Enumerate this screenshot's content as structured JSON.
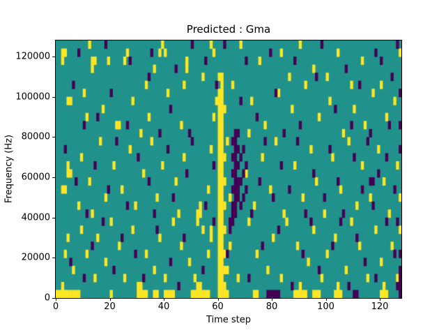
{
  "chart_data": {
    "type": "heatmap",
    "title": "Predicted : Gma",
    "xlabel": "Time step",
    "ylabel": "Frequency (Hz)",
    "x_ticks": [
      0,
      20,
      40,
      60,
      80,
      100,
      120
    ],
    "y_ticks": [
      0,
      20000,
      40000,
      60000,
      80000,
      100000,
      120000
    ],
    "xlim": [
      0,
      128
    ],
    "ylim": [
      0,
      128000
    ],
    "grid_cols": 128,
    "grid_rows": 32,
    "legend": "none",
    "colors": {
      "mid": "#21918c",
      "high": "#fde725",
      "low": "#440154",
      "axis": "#000000",
      "background": "#ffffff"
    },
    "high_cells": [
      [
        0,
        0
      ],
      [
        1,
        0
      ],
      [
        2,
        0
      ],
      [
        3,
        0
      ],
      [
        4,
        0
      ],
      [
        5,
        0
      ],
      [
        6,
        0
      ],
      [
        7,
        0
      ],
      [
        8,
        0
      ],
      [
        20,
        0
      ],
      [
        30,
        0
      ],
      [
        31,
        0
      ],
      [
        32,
        0
      ],
      [
        33,
        0
      ],
      [
        36,
        0
      ],
      [
        37,
        0
      ],
      [
        40,
        0
      ],
      [
        41,
        0
      ],
      [
        42,
        0
      ],
      [
        43,
        0
      ],
      [
        50,
        0
      ],
      [
        51,
        0
      ],
      [
        52,
        0
      ],
      [
        53,
        0
      ],
      [
        54,
        0
      ],
      [
        55,
        0
      ],
      [
        56,
        0
      ],
      [
        60,
        0
      ],
      [
        61,
        0
      ],
      [
        62,
        0
      ],
      [
        63,
        0
      ],
      [
        73,
        0
      ],
      [
        74,
        0
      ],
      [
        88,
        0
      ],
      [
        89,
        0
      ],
      [
        90,
        0
      ],
      [
        91,
        0
      ],
      [
        92,
        0
      ],
      [
        95,
        0
      ],
      [
        96,
        0
      ],
      [
        97,
        0
      ],
      [
        103,
        0
      ],
      [
        104,
        0
      ],
      [
        105,
        0
      ],
      [
        120,
        0
      ],
      [
        121,
        0
      ],
      [
        122,
        0
      ],
      [
        2,
        1
      ],
      [
        3,
        5
      ],
      [
        4,
        7
      ],
      [
        6,
        3
      ],
      [
        9,
        8
      ],
      [
        11,
        5
      ],
      [
        14,
        2
      ],
      [
        15,
        7
      ],
      [
        18,
        4
      ],
      [
        20,
        9
      ],
      [
        23,
        6
      ],
      [
        25,
        2
      ],
      [
        28,
        8
      ],
      [
        30,
        1
      ],
      [
        31,
        1
      ],
      [
        33,
        5
      ],
      [
        36,
        3
      ],
      [
        38,
        7
      ],
      [
        40,
        2
      ],
      [
        43,
        9
      ],
      [
        46,
        6
      ],
      [
        49,
        4
      ],
      [
        51,
        2
      ],
      [
        52,
        1
      ],
      [
        53,
        1
      ],
      [
        54,
        8
      ],
      [
        56,
        5
      ],
      [
        57,
        7
      ],
      [
        57,
        8
      ],
      [
        63,
        3
      ],
      [
        64,
        6
      ],
      [
        67,
        2
      ],
      [
        71,
        9
      ],
      [
        74,
        5
      ],
      [
        78,
        3
      ],
      [
        80,
        7
      ],
      [
        83,
        2
      ],
      [
        85,
        9
      ],
      [
        89,
        6
      ],
      [
        90,
        1
      ],
      [
        93,
        4
      ],
      [
        95,
        8
      ],
      [
        98,
        2
      ],
      [
        100,
        5
      ],
      [
        103,
        7
      ],
      [
        104,
        1
      ],
      [
        107,
        3
      ],
      [
        109,
        9
      ],
      [
        112,
        6
      ],
      [
        115,
        2
      ],
      [
        118,
        8
      ],
      [
        120,
        4
      ],
      [
        121,
        1
      ],
      [
        124,
        6
      ],
      [
        126,
        2
      ],
      [
        127,
        8
      ],
      [
        60,
        1
      ],
      [
        61,
        1
      ],
      [
        62,
        1
      ],
      [
        60,
        2
      ],
      [
        61,
        2
      ],
      [
        60,
        3
      ],
      [
        61,
        3
      ],
      [
        62,
        3
      ],
      [
        60,
        4
      ],
      [
        61,
        4
      ],
      [
        60,
        5
      ],
      [
        61,
        5
      ],
      [
        62,
        5
      ],
      [
        60,
        6
      ],
      [
        61,
        6
      ],
      [
        60,
        7
      ],
      [
        61,
        7
      ],
      [
        60,
        8
      ],
      [
        61,
        8
      ],
      [
        62,
        8
      ],
      [
        60,
        9
      ],
      [
        61,
        9
      ],
      [
        60,
        10
      ],
      [
        61,
        10
      ],
      [
        60,
        11
      ],
      [
        61,
        11
      ],
      [
        62,
        11
      ],
      [
        60,
        12
      ],
      [
        61,
        12
      ],
      [
        60,
        13
      ],
      [
        61,
        13
      ],
      [
        60,
        14
      ],
      [
        61,
        14
      ],
      [
        62,
        14
      ],
      [
        60,
        15
      ],
      [
        61,
        15
      ],
      [
        60,
        16
      ],
      [
        61,
        16
      ],
      [
        60,
        17
      ],
      [
        61,
        17
      ],
      [
        62,
        17
      ],
      [
        60,
        18
      ],
      [
        61,
        18
      ],
      [
        60,
        19
      ],
      [
        61,
        19
      ],
      [
        60,
        20
      ],
      [
        61,
        20
      ],
      [
        60,
        21
      ],
      [
        61,
        21
      ],
      [
        60,
        22
      ],
      [
        61,
        22
      ],
      [
        60,
        23
      ],
      [
        61,
        23
      ],
      [
        62,
        23
      ],
      [
        60,
        24
      ],
      [
        61,
        24
      ],
      [
        60,
        25
      ],
      [
        61,
        25
      ],
      [
        61,
        26
      ],
      [
        60,
        27
      ],
      [
        61,
        27
      ],
      [
        2,
        13
      ],
      [
        3,
        13
      ],
      [
        4,
        15
      ],
      [
        5,
        15
      ],
      [
        4,
        16
      ],
      [
        8,
        11
      ],
      [
        9,
        17
      ],
      [
        12,
        14
      ],
      [
        13,
        10
      ],
      [
        16,
        19
      ],
      [
        18,
        12
      ],
      [
        21,
        16
      ],
      [
        24,
        13
      ],
      [
        27,
        18
      ],
      [
        29,
        11
      ],
      [
        32,
        15
      ],
      [
        35,
        19
      ],
      [
        37,
        12
      ],
      [
        39,
        16
      ],
      [
        44,
        14
      ],
      [
        45,
        10
      ],
      [
        47,
        17
      ],
      [
        52,
        9
      ],
      [
        52,
        10
      ],
      [
        53,
        10
      ],
      [
        53,
        11
      ],
      [
        56,
        13
      ],
      [
        57,
        18
      ],
      [
        63,
        19
      ],
      [
        64,
        12
      ],
      [
        70,
        15
      ],
      [
        73,
        11
      ],
      [
        76,
        17
      ],
      [
        79,
        13
      ],
      [
        81,
        19
      ],
      [
        84,
        10
      ],
      [
        88,
        16
      ],
      [
        91,
        12
      ],
      [
        94,
        18
      ],
      [
        96,
        14
      ],
      [
        99,
        10
      ],
      [
        102,
        17
      ],
      [
        105,
        13
      ],
      [
        108,
        19
      ],
      [
        111,
        11
      ],
      [
        113,
        16
      ],
      [
        116,
        12
      ],
      [
        119,
        18
      ],
      [
        121,
        14
      ],
      [
        123,
        10
      ],
      [
        126,
        16
      ],
      [
        127,
        12
      ],
      [
        4,
        24
      ],
      [
        5,
        24
      ],
      [
        10,
        25
      ],
      [
        11,
        22
      ],
      [
        17,
        23
      ],
      [
        22,
        21
      ],
      [
        23,
        21
      ],
      [
        28,
        24
      ],
      [
        33,
        26
      ],
      [
        34,
        22
      ],
      [
        41,
        25
      ],
      [
        46,
        21
      ],
      [
        47,
        26
      ],
      [
        58,
        22
      ],
      [
        59,
        24
      ],
      [
        65,
        26
      ],
      [
        71,
        20
      ],
      [
        72,
        24
      ],
      [
        77,
        21
      ],
      [
        82,
        25
      ],
      [
        87,
        23
      ],
      [
        92,
        26
      ],
      [
        97,
        22
      ],
      [
        101,
        24
      ],
      [
        106,
        20
      ],
      [
        109,
        26
      ],
      [
        114,
        21
      ],
      [
        117,
        25
      ],
      [
        122,
        22
      ],
      [
        125,
        24
      ],
      [
        31,
        20
      ],
      [
        54,
        27
      ],
      [
        86,
        27
      ],
      [
        100,
        27
      ],
      [
        110,
        23
      ],
      [
        120,
        26
      ],
      [
        2,
        30
      ],
      [
        3,
        30
      ],
      [
        2,
        29
      ],
      [
        13,
        29
      ],
      [
        14,
        29
      ],
      [
        13,
        28
      ],
      [
        19,
        29
      ],
      [
        25,
        29
      ],
      [
        26,
        30
      ],
      [
        38,
        30
      ],
      [
        39,
        31
      ],
      [
        40,
        30
      ],
      [
        48,
        29
      ],
      [
        48,
        28
      ],
      [
        57,
        31
      ],
      [
        58,
        30
      ],
      [
        75,
        29
      ],
      [
        83,
        30
      ],
      [
        95,
        28
      ],
      [
        104,
        30
      ],
      [
        113,
        29
      ],
      [
        127,
        30
      ],
      [
        12,
        31
      ],
      [
        36,
        28
      ],
      [
        68,
        31
      ],
      [
        90,
        31
      ]
    ],
    "low_cells": [
      [
        64,
        8
      ],
      [
        64,
        9
      ],
      [
        65,
        9
      ],
      [
        65,
        10
      ],
      [
        66,
        10
      ],
      [
        66,
        11
      ],
      [
        65,
        11
      ],
      [
        67,
        12
      ],
      [
        66,
        12
      ],
      [
        65,
        13
      ],
      [
        66,
        13
      ],
      [
        67,
        13
      ],
      [
        66,
        14
      ],
      [
        67,
        14
      ],
      [
        65,
        15
      ],
      [
        66,
        15
      ],
      [
        67,
        16
      ],
      [
        66,
        16
      ],
      [
        65,
        17
      ],
      [
        66,
        17
      ],
      [
        67,
        18
      ],
      [
        66,
        18
      ],
      [
        65,
        19
      ],
      [
        66,
        19
      ],
      [
        66,
        20
      ],
      [
        67,
        20
      ],
      [
        68,
        11
      ],
      [
        68,
        14
      ],
      [
        68,
        17
      ],
      [
        69,
        12
      ],
      [
        69,
        15
      ],
      [
        69,
        18
      ],
      [
        70,
        13
      ],
      [
        70,
        16
      ],
      [
        8,
        30
      ],
      [
        18,
        31
      ],
      [
        27,
        29
      ],
      [
        35,
        30
      ],
      [
        44,
        28
      ],
      [
        55,
        29
      ],
      [
        62,
        31
      ],
      [
        79,
        30
      ],
      [
        88,
        29
      ],
      [
        98,
        31
      ],
      [
        107,
        28
      ],
      [
        118,
        30
      ],
      [
        120,
        29
      ],
      [
        126,
        31
      ],
      [
        50,
        31
      ],
      [
        70,
        29
      ],
      [
        6,
        26
      ],
      [
        15,
        22
      ],
      [
        20,
        25
      ],
      [
        26,
        21
      ],
      [
        34,
        27
      ],
      [
        42,
        23
      ],
      [
        49,
        20
      ],
      [
        59,
        26
      ],
      [
        74,
        22
      ],
      [
        81,
        25
      ],
      [
        90,
        21
      ],
      [
        96,
        27
      ],
      [
        103,
        23
      ],
      [
        112,
        26
      ],
      [
        116,
        20
      ],
      [
        124,
        27
      ],
      [
        10,
        21
      ],
      [
        38,
        20
      ],
      [
        68,
        24
      ],
      [
        84,
        20
      ],
      [
        109,
        21
      ],
      [
        123,
        21
      ],
      [
        127,
        25
      ],
      [
        3,
        18
      ],
      [
        7,
        14
      ],
      [
        11,
        10
      ],
      [
        14,
        16
      ],
      [
        19,
        13
      ],
      [
        22,
        19
      ],
      [
        26,
        11
      ],
      [
        30,
        17
      ],
      [
        34,
        14
      ],
      [
        36,
        10
      ],
      [
        41,
        18
      ],
      [
        43,
        12
      ],
      [
        48,
        15
      ],
      [
        50,
        19
      ],
      [
        55,
        11
      ],
      [
        58,
        16
      ],
      [
        72,
        10
      ],
      [
        75,
        14
      ],
      [
        77,
        19
      ],
      [
        80,
        12
      ],
      [
        83,
        16
      ],
      [
        86,
        13
      ],
      [
        89,
        19
      ],
      [
        92,
        10
      ],
      [
        95,
        15
      ],
      [
        99,
        12
      ],
      [
        101,
        18
      ],
      [
        104,
        14
      ],
      [
        106,
        10
      ],
      [
        110,
        17
      ],
      [
        113,
        13
      ],
      [
        115,
        19
      ],
      [
        117,
        11
      ],
      [
        119,
        15
      ],
      [
        122,
        17
      ],
      [
        125,
        13
      ],
      [
        127,
        18
      ],
      [
        116,
        14
      ],
      [
        117,
        14
      ],
      [
        127,
        21
      ],
      [
        5,
        4
      ],
      [
        10,
        2
      ],
      [
        13,
        6
      ],
      [
        17,
        9
      ],
      [
        21,
        3
      ],
      [
        24,
        7
      ],
      [
        29,
        5
      ],
      [
        32,
        2
      ],
      [
        37,
        8
      ],
      [
        42,
        4
      ],
      [
        45,
        1
      ],
      [
        47,
        7
      ],
      [
        54,
        3
      ],
      [
        58,
        9
      ],
      [
        63,
        5
      ],
      [
        71,
        2
      ],
      [
        76,
        6
      ],
      [
        82,
        8
      ],
      [
        87,
        1
      ],
      [
        91,
        5
      ],
      [
        94,
        9
      ],
      [
        97,
        3
      ],
      [
        102,
        6
      ],
      [
        105,
        9
      ],
      [
        108,
        1
      ],
      [
        111,
        7
      ],
      [
        114,
        4
      ],
      [
        118,
        2
      ],
      [
        122,
        9
      ],
      [
        125,
        5
      ],
      [
        126,
        1
      ],
      [
        127,
        1
      ],
      [
        127,
        2
      ],
      [
        127,
        3
      ],
      [
        127,
        5
      ],
      [
        126,
        9
      ],
      [
        78,
        0
      ],
      [
        79,
        0
      ],
      [
        80,
        0
      ],
      [
        81,
        0
      ],
      [
        82,
        0
      ],
      [
        110,
        0
      ],
      [
        111,
        0
      ],
      [
        127,
        0
      ]
    ]
  }
}
